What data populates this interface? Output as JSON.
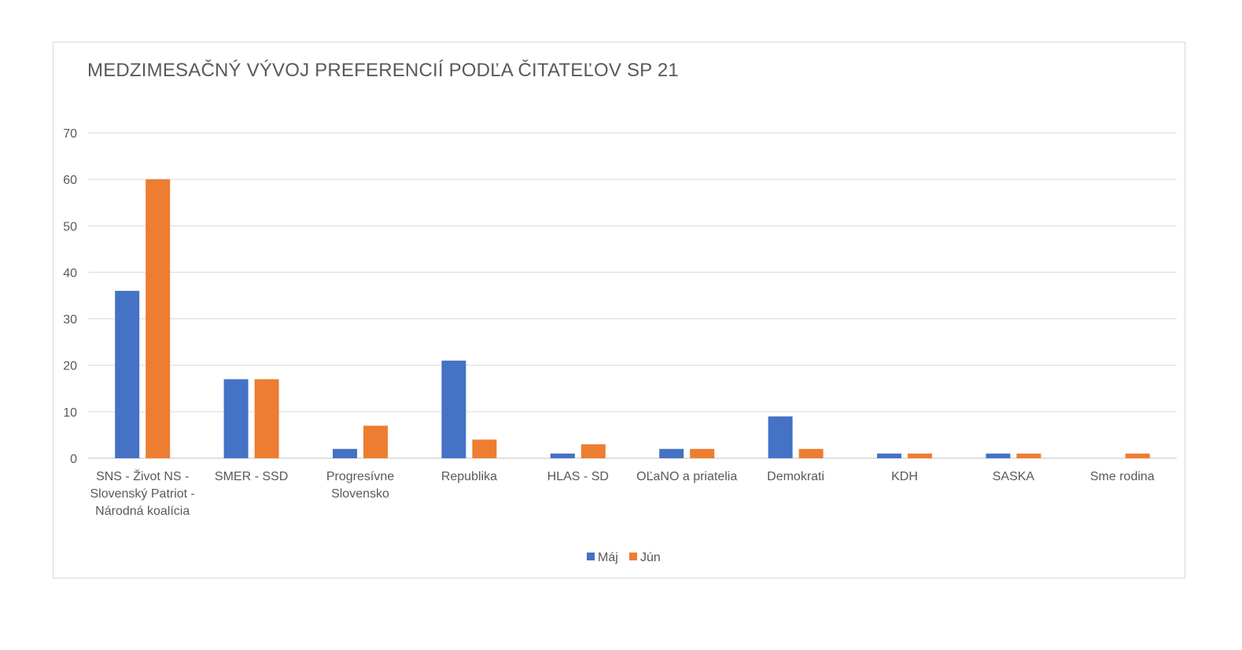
{
  "chart_data": {
    "type": "bar",
    "title": "MEDZIMESAČNÝ VÝVOJ PREFERENCIÍ PODĽA ČITATEĽOV SP 21",
    "categories": [
      [
        "SNS - Život NS -",
        "Slovenský Patriot -",
        "Národná koalícia"
      ],
      [
        "SMER - SSD"
      ],
      [
        "Progresívne",
        "Slovensko"
      ],
      [
        "Republika"
      ],
      [
        "HLAS - SD"
      ],
      [
        "OĽaNO a priatelia"
      ],
      [
        "Demokrati"
      ],
      [
        "KDH"
      ],
      [
        "SASKA"
      ],
      [
        "Sme rodina"
      ]
    ],
    "series": [
      {
        "name": "Máj",
        "color": "#4472c4",
        "values": [
          36,
          17,
          2,
          21,
          1,
          2,
          9,
          1,
          1,
          0
        ]
      },
      {
        "name": "Jún",
        "color": "#ed7d31",
        "values": [
          60,
          17,
          7,
          4,
          3,
          2,
          2,
          1,
          1,
          1
        ]
      }
    ],
    "ylim": [
      0,
      70
    ],
    "yticks": [
      0,
      10,
      20,
      30,
      40,
      50,
      60,
      70
    ],
    "grid": true,
    "legend_position": "bottom"
  }
}
